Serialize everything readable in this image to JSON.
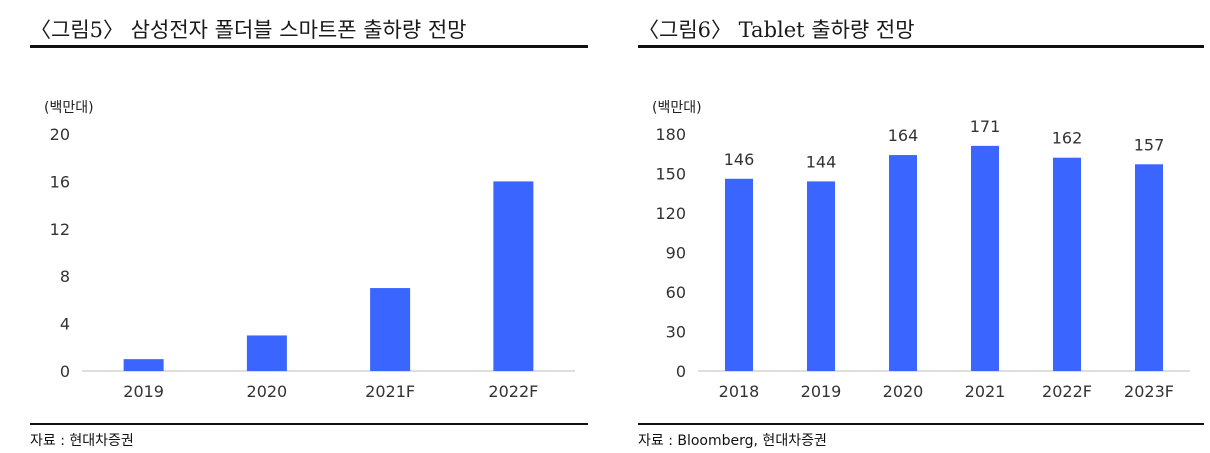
{
  "figures": [
    {
      "title": "〈그림5〉 삼성전자 폴더블 스마트폰 출하량 전망",
      "source": "자료 : 현대차증권"
    },
    {
      "title": "〈그림6〉 Tablet 출하량 전망",
      "source": "자료 : Bloomberg, 현대차증권"
    }
  ],
  "chart_data": [
    {
      "type": "bar",
      "title": "",
      "unit_label": "(백만대)",
      "categories": [
        "2019",
        "2020",
        "2021F",
        "2022F"
      ],
      "values": [
        1,
        3,
        7,
        16
      ],
      "ylim": [
        0,
        20
      ],
      "yticks": [
        0,
        4,
        8,
        12,
        16,
        20
      ],
      "data_labels": false,
      "grid": false,
      "bar_color": "#3A66FF"
    },
    {
      "type": "bar",
      "title": "",
      "unit_label": "(백만대)",
      "categories": [
        "2018",
        "2019",
        "2020",
        "2021",
        "2022F",
        "2023F"
      ],
      "values": [
        146,
        144,
        164,
        171,
        162,
        157
      ],
      "ylim": [
        0,
        180
      ],
      "yticks": [
        0,
        30,
        60,
        90,
        120,
        150,
        180
      ],
      "data_labels": true,
      "grid": false,
      "bar_color": "#3A66FF"
    }
  ]
}
